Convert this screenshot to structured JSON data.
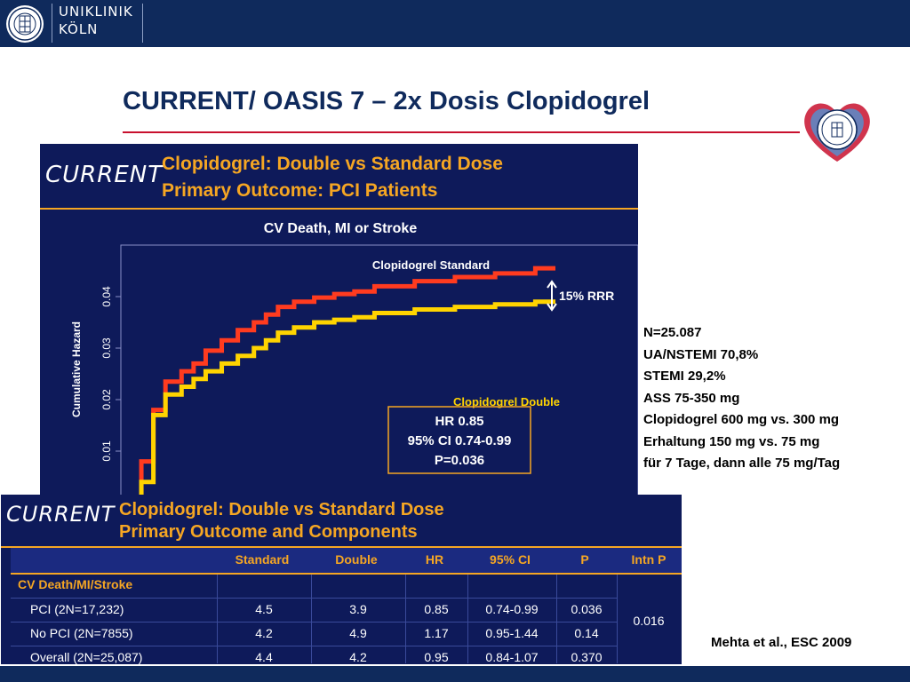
{
  "header": {
    "brand_line1": "UNIKLINIK",
    "brand_line2": "KÖLN",
    "seal_icon": "university-seal-icon"
  },
  "title": "CURRENT/ OASIS 7 – 2x Dosis Clopidogrel",
  "colors": {
    "brand_navy": "#0f2a5c",
    "title_rule": "#c8102e",
    "slide_bg": "#0e1a5a",
    "slide_accent": "#f5a623",
    "standard_series": "#ff3b1f",
    "double_series": "#ffd400"
  },
  "slide1": {
    "logo": "CURRENT",
    "heading1": "Clopidogrel: Double vs Standard Dose",
    "heading2": "Primary Outcome: PCI Patients",
    "chart_title": "CV Death, MI or Stroke",
    "stats_line1": "HR 0.85",
    "stats_line2": "95% CI 0.74-0.99",
    "stats_line3": "P=0.036",
    "rrr_label": "15% RRR"
  },
  "chart_data": {
    "type": "line",
    "title": "CV Death, MI or Stroke",
    "xlabel": "",
    "ylabel": "Cumulative Hazard",
    "ylim": [
      0,
      0.05
    ],
    "yticks": [
      "0.01",
      "0.02",
      "0.03",
      "0.04"
    ],
    "grid": false,
    "series": [
      {
        "name": "Clopidogrel Standard",
        "color": "#ff3b1f",
        "points": [
          [
            0,
            0
          ],
          [
            2,
            0.008
          ],
          [
            5,
            0.018
          ],
          [
            8,
            0.0235
          ],
          [
            12,
            0.0255
          ],
          [
            15,
            0.027
          ],
          [
            18,
            0.0295
          ],
          [
            22,
            0.0315
          ],
          [
            26,
            0.0335
          ],
          [
            30,
            0.035
          ],
          [
            33,
            0.0365
          ],
          [
            36,
            0.038
          ],
          [
            40,
            0.039
          ],
          [
            45,
            0.0398
          ],
          [
            50,
            0.0405
          ],
          [
            55,
            0.041
          ],
          [
            60,
            0.042
          ],
          [
            70,
            0.043
          ],
          [
            80,
            0.0438
          ],
          [
            90,
            0.0445
          ],
          [
            100,
            0.0455
          ],
          [
            105,
            0.0455
          ]
        ]
      },
      {
        "name": "Clopidogrel Double",
        "color": "#ffd400",
        "points": [
          [
            0,
            0
          ],
          [
            2,
            0.004
          ],
          [
            5,
            0.017
          ],
          [
            8,
            0.021
          ],
          [
            12,
            0.0225
          ],
          [
            15,
            0.024
          ],
          [
            18,
            0.0255
          ],
          [
            22,
            0.027
          ],
          [
            26,
            0.0285
          ],
          [
            30,
            0.03
          ],
          [
            33,
            0.0315
          ],
          [
            36,
            0.033
          ],
          [
            40,
            0.034
          ],
          [
            45,
            0.035
          ],
          [
            50,
            0.0355
          ],
          [
            55,
            0.036
          ],
          [
            60,
            0.0368
          ],
          [
            70,
            0.0375
          ],
          [
            80,
            0.038
          ],
          [
            90,
            0.0385
          ],
          [
            100,
            0.039
          ],
          [
            105,
            0.039
          ]
        ]
      }
    ]
  },
  "side_notes": [
    "N=25.087",
    "UA/NSTEMI 70,8%",
    "STEMI 29,2%",
    "ASS 75-350 mg",
    "Clopidogrel 600 mg vs. 300 mg",
    "Erhaltung 150 mg vs. 75 mg",
    "für 7 Tage, dann alle 75 mg/Tag"
  ],
  "slide2": {
    "logo": "CURRENT",
    "heading1": "Clopidogrel: Double vs Standard Dose",
    "heading2": "Primary Outcome and Components",
    "columns": [
      "Standard",
      "Double",
      "HR",
      "95% CI",
      "P",
      "Intn P"
    ],
    "group_label": "CV Death/MI/Stroke",
    "rows": [
      {
        "label": "PCI (2N=17,232)",
        "standard": "4.5",
        "double": "3.9",
        "hr": "0.85",
        "ci": "0.74-0.99",
        "p": "0.036"
      },
      {
        "label": "No PCI (2N=7855)",
        "standard": "4.2",
        "double": "4.9",
        "hr": "1.17",
        "ci": "0.95-1.44",
        "p": "0.14"
      },
      {
        "label": "Overall (2N=25,087)",
        "standard": "4.4",
        "double": "4.2",
        "hr": "0.95",
        "ci": "0.84-1.07",
        "p": "0.370"
      }
    ],
    "intn_p": "0.016"
  },
  "citation": "Mehta et al., ESC 2009"
}
